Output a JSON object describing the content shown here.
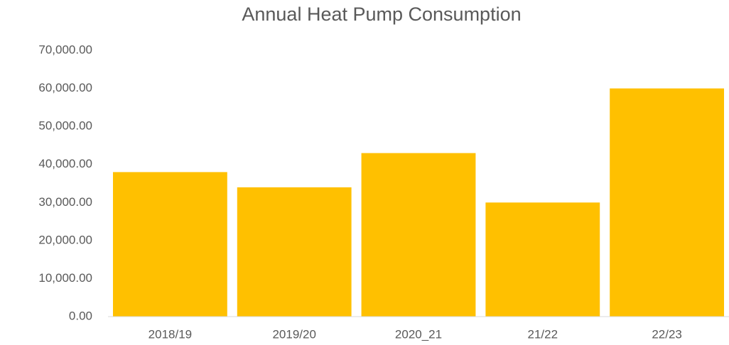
{
  "chart_data": {
    "type": "bar",
    "title": "Annual Heat Pump Consumption",
    "categories": [
      "2018/19",
      "2019/20",
      "2020_21",
      "21/22",
      "22/23"
    ],
    "values": [
      38000,
      34000,
      43000,
      30000,
      60000
    ],
    "color": "#ffc000",
    "ylim": [
      0,
      70000
    ],
    "yticks": [
      {
        "value": 0,
        "label": "0.00"
      },
      {
        "value": 10000,
        "label": "10,000.00"
      },
      {
        "value": 20000,
        "label": "20,000.00"
      },
      {
        "value": 30000,
        "label": "30,000.00"
      },
      {
        "value": 40000,
        "label": "40,000.00"
      },
      {
        "value": 50000,
        "label": "50,000.00"
      },
      {
        "value": 60000,
        "label": "60,000.00"
      },
      {
        "value": 70000,
        "label": "70,000.00"
      }
    ],
    "grid": false
  }
}
